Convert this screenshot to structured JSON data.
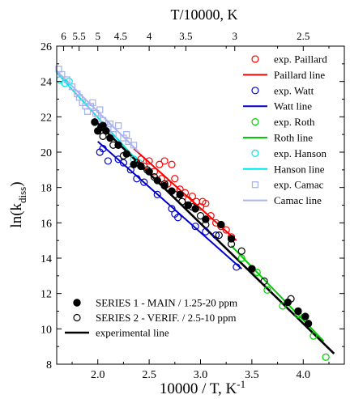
{
  "chart_data": {
    "type": "scatter",
    "xlabel_parts": [
      "10000 / T, K",
      "-1"
    ],
    "ylabel_parts": [
      "ln(k",
      "diss",
      ")"
    ],
    "top_axis_label": "T/10000, K",
    "xlim": [
      1.6,
      4.4
    ],
    "ylim": [
      8,
      26
    ],
    "x_ticks": [
      2.0,
      2.5,
      3.0,
      3.5,
      4.0
    ],
    "x_tick_labels": [
      "2.0",
      "2.5",
      "3.0",
      "3.5",
      "4.0"
    ],
    "y_ticks": [
      8,
      10,
      12,
      14,
      16,
      18,
      20,
      22,
      24,
      26
    ],
    "y_tick_labels": [
      "8",
      "10",
      "12",
      "14",
      "16",
      "18",
      "20",
      "22",
      "24",
      "26"
    ],
    "top_ticks": [
      1.6667,
      1.8182,
      2.0,
      2.2222,
      2.5,
      2.8571,
      3.3333,
      4.0
    ],
    "top_tick_labels": [
      "6",
      "5.5",
      "5",
      "4.5",
      "4",
      "3.5",
      "3",
      "2.5"
    ],
    "colors": {
      "paillard": "#ff0000",
      "watt": "#0000cc",
      "roth": "#00cc00",
      "hanson": "#00e5e5",
      "camac": "#aab4ee",
      "experimental": "#000000"
    },
    "series": [
      {
        "name": "exp. Paillard",
        "kind": "open-circle",
        "color": "#ff0000",
        "x": [
          2.42,
          2.45,
          2.5,
          2.55,
          2.6,
          2.62,
          2.65,
          2.68,
          2.72,
          2.75,
          2.8,
          2.85,
          2.88,
          2.92,
          2.96,
          3.0,
          3.02,
          3.05,
          3.1,
          3.15,
          3.2,
          3.25,
          3.3
        ],
        "y": [
          19.6,
          19.2,
          19.5,
          18.9,
          19.3,
          18.5,
          19.5,
          18.2,
          19.3,
          18.5,
          17.9,
          17.7,
          17.3,
          17.5,
          17.2,
          16.9,
          17.2,
          17.1,
          16.4,
          16.0,
          15.8,
          15.6,
          15.2
        ]
      },
      {
        "name": "Paillard line",
        "kind": "line",
        "color": "#ff0000",
        "x": [
          2.35,
          3.35
        ],
        "y": [
          20.2,
          15.0
        ]
      },
      {
        "name": "exp. Watt",
        "kind": "open-circle",
        "color": "#0000cc",
        "x": [
          2.02,
          2.05,
          2.1,
          2.2,
          2.25,
          2.32,
          2.38,
          2.45,
          2.58,
          2.72,
          2.75,
          2.78,
          2.95,
          3.05,
          3.15,
          3.35
        ],
        "y": [
          20.0,
          20.2,
          19.5,
          19.6,
          19.4,
          19.0,
          18.5,
          18.3,
          17.6,
          16.8,
          16.5,
          16.3,
          15.8,
          15.5,
          15.3,
          13.5
        ]
      },
      {
        "name": "Watt line",
        "kind": "line",
        "color": "#0000cc",
        "x": [
          2.0,
          3.4
        ],
        "y": [
          20.6,
          13.4
        ]
      },
      {
        "name": "exp. Roth",
        "kind": "open-circle",
        "color": "#00cc00",
        "x": [
          3.4,
          3.55,
          3.65,
          3.8,
          3.95,
          4.1,
          4.22
        ],
        "y": [
          14.0,
          13.2,
          12.2,
          11.3,
          10.8,
          9.6,
          8.4
        ]
      },
      {
        "name": "Roth line",
        "kind": "line",
        "color": "#00cc00",
        "x": [
          3.3,
          4.2
        ],
        "y": [
          14.7,
          9.3
        ]
      },
      {
        "name": "exp. Hanson",
        "kind": "open-circle",
        "color": "#00e5e5",
        "x": [
          1.63,
          1.68,
          1.72,
          2.35,
          2.4
        ],
        "y": [
          24.1,
          23.9,
          24.0,
          19.6,
          19.4
        ]
      },
      {
        "name": "Hanson line",
        "kind": "line",
        "color": "#00e5e5",
        "x": [
          1.6,
          2.45
        ],
        "y": [
          24.5,
          19.1
        ]
      },
      {
        "name": "exp. Camac",
        "kind": "open-square",
        "color": "#aab4ee",
        "x": [
          1.62,
          1.65,
          1.7,
          1.75,
          1.8,
          1.82,
          1.85,
          1.88,
          1.9,
          1.93,
          1.95,
          1.98,
          2.0,
          2.02,
          2.05,
          2.1,
          2.12,
          2.15,
          2.2,
          2.25,
          2.28,
          2.3,
          2.35
        ],
        "y": [
          24.7,
          24.4,
          24.1,
          23.7,
          23.3,
          23.1,
          22.8,
          22.6,
          22.3,
          22.6,
          22.8,
          22.2,
          21.9,
          22.4,
          21.8,
          21.4,
          21.6,
          21.0,
          21.5,
          20.8,
          21.0,
          20.6,
          20.4
        ]
      },
      {
        "name": "Camac line",
        "kind": "line",
        "color": "#aab4ee",
        "x": [
          1.6,
          2.4
        ],
        "y": [
          24.6,
          20.0
        ]
      },
      {
        "name": "SERIES 1 - MAIN / 1.25-20 ppm",
        "kind": "filled-circle",
        "color": "#000000",
        "x": [
          1.97,
          2.0,
          2.03,
          2.05,
          2.08,
          2.12,
          2.2,
          2.28,
          2.35,
          2.42,
          2.5,
          2.58,
          2.65,
          2.72,
          2.8,
          2.88,
          2.95,
          3.05,
          3.2,
          3.3,
          3.5,
          3.85,
          3.95,
          4.02,
          4.05
        ],
        "y": [
          21.7,
          21.2,
          21.4,
          21.5,
          21.2,
          20.8,
          20.4,
          19.9,
          19.3,
          19.2,
          18.9,
          18.4,
          18.1,
          17.8,
          17.6,
          17.0,
          16.8,
          16.2,
          15.9,
          15.1,
          13.4,
          11.5,
          11.0,
          10.7,
          10.3
        ]
      },
      {
        "name": "SERIES 2 - VERIF. / 2.5-10 ppm",
        "kind": "open-circle",
        "color": "#000000",
        "x": [
          2.05,
          2.15,
          2.25,
          2.38,
          2.48,
          2.55,
          2.65,
          2.75,
          2.82,
          2.92,
          3.0,
          3.05,
          3.18,
          3.3,
          3.4,
          3.62,
          3.88
        ],
        "y": [
          20.9,
          20.4,
          19.8,
          19.4,
          19.0,
          18.6,
          18.2,
          17.6,
          17.2,
          16.9,
          16.4,
          15.9,
          15.3,
          14.8,
          14.4,
          12.7,
          11.7
        ]
      },
      {
        "name": "experimental line",
        "kind": "line",
        "color": "#000000",
        "x": [
          1.97,
          4.3
        ],
        "y": [
          21.8,
          8.6
        ]
      }
    ],
    "legend_top_right": [
      "exp. Paillard",
      "Paillard line",
      "exp. Watt",
      "Watt line",
      "exp. Roth",
      "Roth line",
      "exp. Hanson",
      "Hanson line",
      "exp. Camac",
      "Camac line"
    ],
    "legend_bottom_left": [
      "SERIES 1 - MAIN / 1.25-20 ppm",
      "SERIES 2 - VERIF. / 2.5-10 ppm",
      "experimental line"
    ]
  }
}
